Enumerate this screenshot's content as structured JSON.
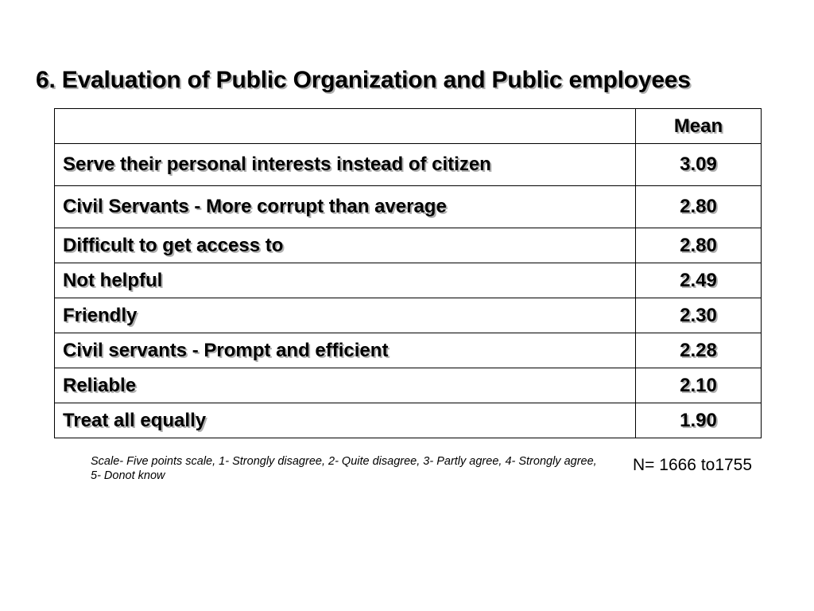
{
  "slide": {
    "title": "6. Evaluation  of Public Organization and Public employees"
  },
  "table": {
    "header": {
      "label": "",
      "mean": "Mean"
    },
    "rows": [
      {
        "label": "Serve their personal interests instead of citizen",
        "mean": "3.09"
      },
      {
        "label": "Civil Servants - More corrupt than average",
        "mean": "2.80"
      },
      {
        "label": "Difficult to get access to",
        "mean": "2.80"
      },
      {
        "label": "Not helpful",
        "mean": "2.49"
      },
      {
        "label": "Friendly",
        "mean": "2.30"
      },
      {
        "label": "Civil servants - Prompt and efficient",
        "mean": "2.28"
      },
      {
        "label": "Reliable",
        "mean": "2.10"
      },
      {
        "label": "Treat all equally",
        "mean": "1.90"
      }
    ]
  },
  "footnote": {
    "scale": "Scale- Five points scale, 1- Strongly disagree, 2- Quite disagree, 3- Partly agree, 4- Strongly agree, 5- Donot know",
    "sample": "N= 1666 to1755"
  }
}
